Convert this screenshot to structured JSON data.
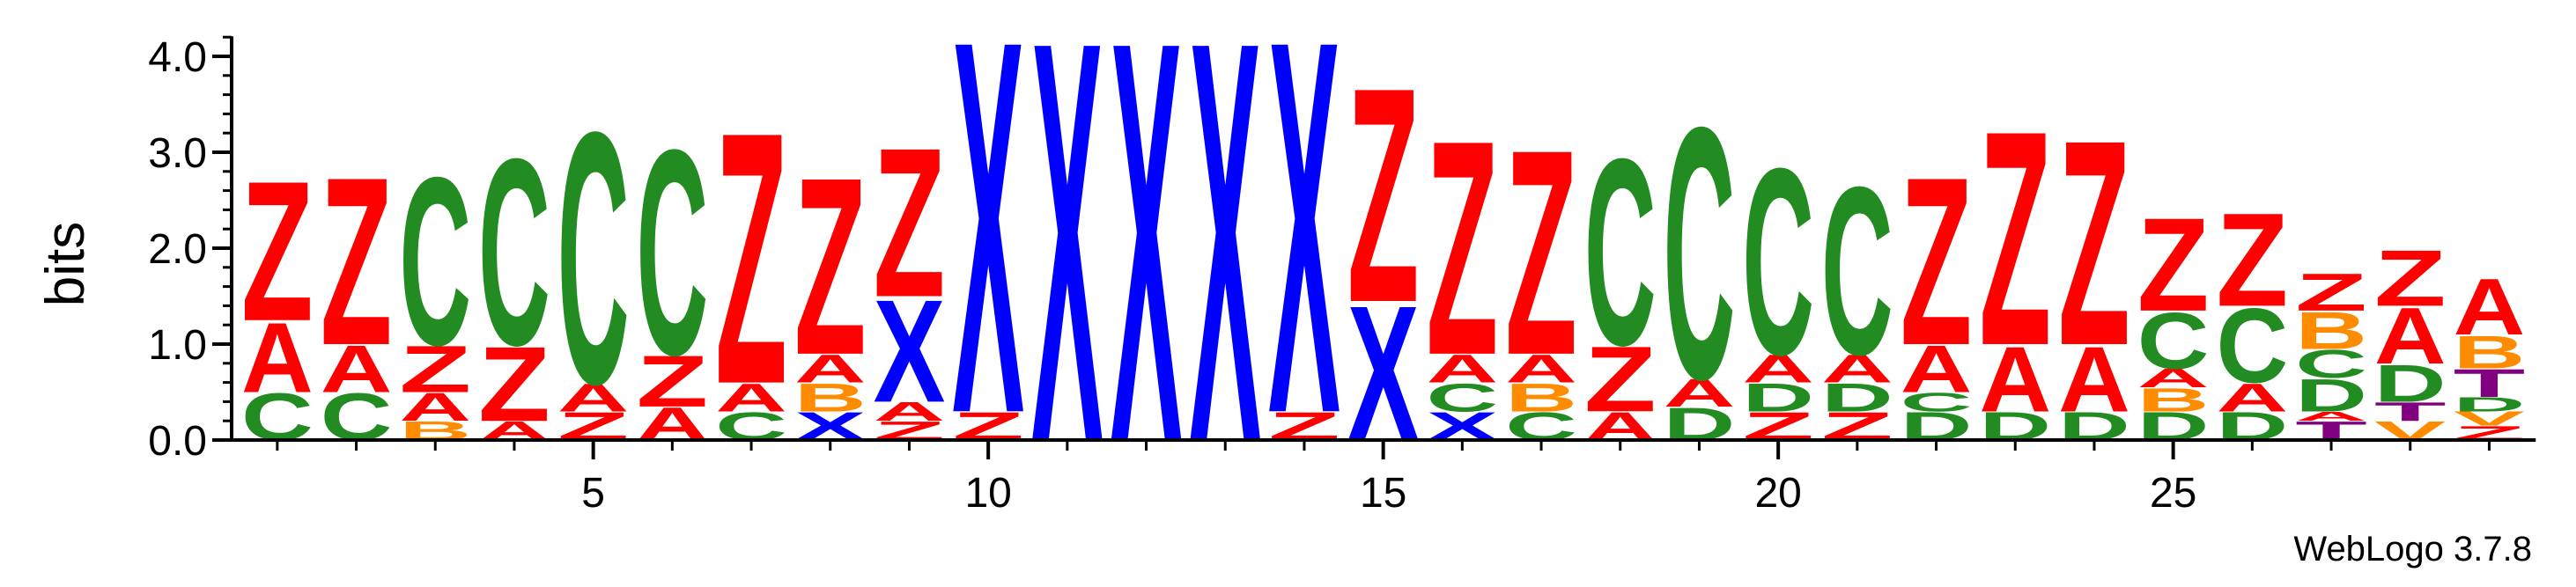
{
  "chart_data": {
    "type": "sequence-logo",
    "ylabel": "bits",
    "ylim": [
      0,
      4.3
    ],
    "yticks": [
      "0.0",
      "1.0",
      "2.0",
      "3.0",
      "4.0"
    ],
    "xticks": [
      5,
      10,
      15,
      20,
      25
    ],
    "x_range": [
      1,
      29
    ],
    "footer": "WebLogo 3.7.8",
    "colors": {
      "Z": "#ff0000",
      "A": "#ff0000",
      "C": "#228b22",
      "D": "#228b22",
      "X": "#0000ff",
      "B": "#ff8c00",
      "T": "#800080",
      "V": "#ff8c00"
    },
    "positions": [
      {
        "pos": 1,
        "stack": [
          [
            "C",
            0.5
          ],
          [
            "A",
            0.75
          ],
          [
            "Z",
            1.5
          ]
        ]
      },
      {
        "pos": 2,
        "stack": [
          [
            "C",
            0.5
          ],
          [
            "A",
            0.5
          ],
          [
            "Z",
            1.8
          ]
        ]
      },
      {
        "pos": 3,
        "stack": [
          [
            "B",
            0.2
          ],
          [
            "A",
            0.3
          ],
          [
            "Z",
            0.5
          ],
          [
            "C",
            1.8
          ]
        ]
      },
      {
        "pos": 4,
        "stack": [
          [
            "A",
            0.2
          ],
          [
            "Z",
            0.8
          ],
          [
            "C",
            2.0
          ]
        ]
      },
      {
        "pos": 5,
        "stack": [
          [
            "Z",
            0.3
          ],
          [
            "A",
            0.3
          ],
          [
            "C",
            2.7
          ]
        ]
      },
      {
        "pos": 6,
        "stack": [
          [
            "A",
            0.35
          ],
          [
            "Z",
            0.55
          ],
          [
            "C",
            2.2
          ]
        ]
      },
      {
        "pos": 7,
        "stack": [
          [
            "C",
            0.3
          ],
          [
            "A",
            0.3
          ],
          [
            "Z",
            2.7
          ]
        ]
      },
      {
        "pos": 8,
        "stack": [
          [
            "X",
            0.3
          ],
          [
            "B",
            0.3
          ],
          [
            "A",
            0.3
          ],
          [
            "Z",
            1.9
          ]
        ]
      },
      {
        "pos": 9,
        "stack": [
          [
            "Z",
            0.2
          ],
          [
            "A",
            0.2
          ],
          [
            "X",
            1.1
          ],
          [
            "Z",
            1.6
          ]
        ]
      },
      {
        "pos": 10,
        "stack": [
          [
            "Z",
            0.3
          ],
          [
            "X",
            4.0
          ]
        ]
      },
      {
        "pos": 11,
        "stack": [
          [
            "X",
            4.3
          ]
        ]
      },
      {
        "pos": 12,
        "stack": [
          [
            "X",
            4.3
          ]
        ]
      },
      {
        "pos": 13,
        "stack": [
          [
            "X",
            4.3
          ]
        ]
      },
      {
        "pos": 14,
        "stack": [
          [
            "Z",
            0.3
          ],
          [
            "X",
            4.0
          ]
        ]
      },
      {
        "pos": 15,
        "stack": [
          [
            "X",
            1.45
          ],
          [
            "Z",
            2.3
          ]
        ]
      },
      {
        "pos": 16,
        "stack": [
          [
            "X",
            0.3
          ],
          [
            "C",
            0.3
          ],
          [
            "A",
            0.3
          ],
          [
            "Z",
            2.3
          ]
        ]
      },
      {
        "pos": 17,
        "stack": [
          [
            "C",
            0.3
          ],
          [
            "B",
            0.3
          ],
          [
            "A",
            0.3
          ],
          [
            "Z",
            2.2
          ]
        ]
      },
      {
        "pos": 18,
        "stack": [
          [
            "A",
            0.3
          ],
          [
            "Z",
            0.7
          ],
          [
            "C",
            2.0
          ]
        ]
      },
      {
        "pos": 19,
        "stack": [
          [
            "D",
            0.35
          ],
          [
            "A",
            0.3
          ],
          [
            "C",
            2.7
          ]
        ]
      },
      {
        "pos": 20,
        "stack": [
          [
            "Z",
            0.3
          ],
          [
            "D",
            0.3
          ],
          [
            "A",
            0.3
          ],
          [
            "C",
            2.0
          ]
        ]
      },
      {
        "pos": 21,
        "stack": [
          [
            "Z",
            0.3
          ],
          [
            "D",
            0.3
          ],
          [
            "A",
            0.3
          ],
          [
            "C",
            1.8
          ]
        ]
      },
      {
        "pos": 22,
        "stack": [
          [
            "D",
            0.3
          ],
          [
            "C",
            0.2
          ],
          [
            "A",
            0.5
          ],
          [
            "Z",
            1.8
          ]
        ]
      },
      {
        "pos": 23,
        "stack": [
          [
            "D",
            0.3
          ],
          [
            "A",
            0.7
          ],
          [
            "Z",
            2.3
          ]
        ]
      },
      {
        "pos": 24,
        "stack": [
          [
            "D",
            0.3
          ],
          [
            "A",
            0.7
          ],
          [
            "Z",
            2.2
          ]
        ]
      },
      {
        "pos": 25,
        "stack": [
          [
            "D",
            0.3
          ],
          [
            "B",
            0.25
          ],
          [
            "A",
            0.2
          ],
          [
            "C",
            0.6
          ],
          [
            "Z",
            1.0
          ]
        ]
      },
      {
        "pos": 26,
        "stack": [
          [
            "D",
            0.3
          ],
          [
            "A",
            0.3
          ],
          [
            "C",
            0.8
          ],
          [
            "Z",
            1.0
          ]
        ]
      },
      {
        "pos": 27,
        "stack": [
          [
            "T",
            0.2
          ],
          [
            "A",
            0.1
          ],
          [
            "D",
            0.35
          ],
          [
            "C",
            0.3
          ],
          [
            "B",
            0.4
          ],
          [
            "Z",
            0.4
          ]
        ]
      },
      {
        "pos": 28,
        "stack": [
          [
            "V",
            0.2
          ],
          [
            "T",
            0.2
          ],
          [
            "D",
            0.4
          ],
          [
            "A",
            0.6
          ],
          [
            "Z",
            0.6
          ]
        ]
      },
      {
        "pos": 29,
        "stack": [
          [
            "Z",
            0.15
          ],
          [
            "V",
            0.15
          ],
          [
            "D",
            0.15
          ],
          [
            "T",
            0.3
          ],
          [
            "B",
            0.35
          ],
          [
            "A",
            0.6
          ]
        ]
      }
    ]
  }
}
